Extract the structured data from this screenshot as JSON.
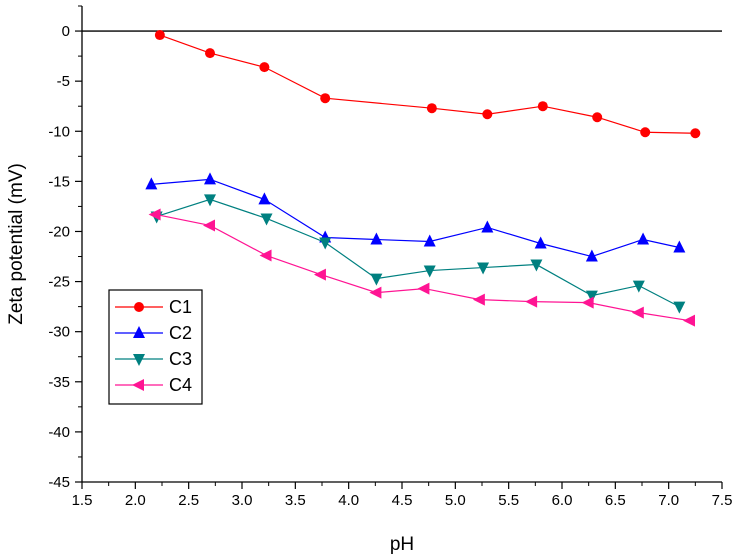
{
  "chart_data": {
    "type": "line",
    "title": "",
    "xlabel": "pH",
    "ylabel": "Zeta potential (mV)",
    "xlim": [
      1.5,
      7.5
    ],
    "ylim": [
      -45,
      2.5
    ],
    "xticks": [
      1.5,
      2.0,
      2.5,
      3.0,
      3.5,
      4.0,
      4.5,
      5.0,
      5.5,
      6.0,
      6.5,
      7.0,
      7.5
    ],
    "xtick_labels": [
      "1.5",
      "2.0",
      "2.5",
      "3.0",
      "3.5",
      "4.0",
      "4.5",
      "5.0",
      "5.5",
      "6.0",
      "6.5",
      "7.0",
      "7.5"
    ],
    "yticks": [
      0,
      -5,
      -10,
      -15,
      -20,
      -25,
      -30,
      -35,
      -40,
      -45
    ],
    "ytick_labels": [
      "0",
      "-5",
      "-10",
      "-15",
      "-20",
      "-25",
      "-30",
      "-35",
      "-40",
      "-45"
    ],
    "reference_line_y": 0,
    "grid": false,
    "legend_position": "lower-left",
    "series": [
      {
        "name": "C1",
        "color": "#ff0000",
        "marker": "circle",
        "x": [
          2.23,
          2.7,
          3.21,
          3.78,
          4.78,
          5.3,
          5.82,
          6.33,
          6.78,
          7.25
        ],
        "y": [
          -0.4,
          -2.2,
          -3.6,
          -6.7,
          -7.7,
          -8.3,
          -7.5,
          -8.6,
          -10.1,
          -10.2
        ]
      },
      {
        "name": "C2",
        "color": "#0000ff",
        "marker": "triangle-up",
        "x": [
          2.15,
          2.7,
          3.21,
          3.78,
          4.26,
          4.76,
          5.3,
          5.8,
          6.28,
          6.76,
          7.1
        ],
        "y": [
          -15.3,
          -14.8,
          -16.8,
          -20.6,
          -20.8,
          -21.0,
          -19.6,
          -21.2,
          -22.5,
          -20.8,
          -21.6
        ]
      },
      {
        "name": "C3",
        "color": "#008080",
        "marker": "triangle-down",
        "x": [
          2.2,
          2.7,
          3.23,
          3.78,
          4.26,
          4.76,
          5.26,
          5.76,
          6.28,
          6.72,
          7.1
        ],
        "y": [
          -18.5,
          -16.8,
          -18.7,
          -21.1,
          -24.7,
          -23.9,
          -23.6,
          -23.3,
          -26.4,
          -25.4,
          -27.5
        ]
      },
      {
        "name": "C4",
        "color": "#ff1493",
        "marker": "triangle-left",
        "x": [
          2.19,
          2.7,
          3.23,
          3.74,
          4.26,
          4.71,
          5.23,
          5.72,
          6.25,
          6.72,
          7.2
        ],
        "y": [
          -18.3,
          -19.4,
          -22.4,
          -24.3,
          -26.1,
          -25.7,
          -26.8,
          -27.0,
          -27.1,
          -28.1,
          -28.9
        ]
      }
    ]
  }
}
